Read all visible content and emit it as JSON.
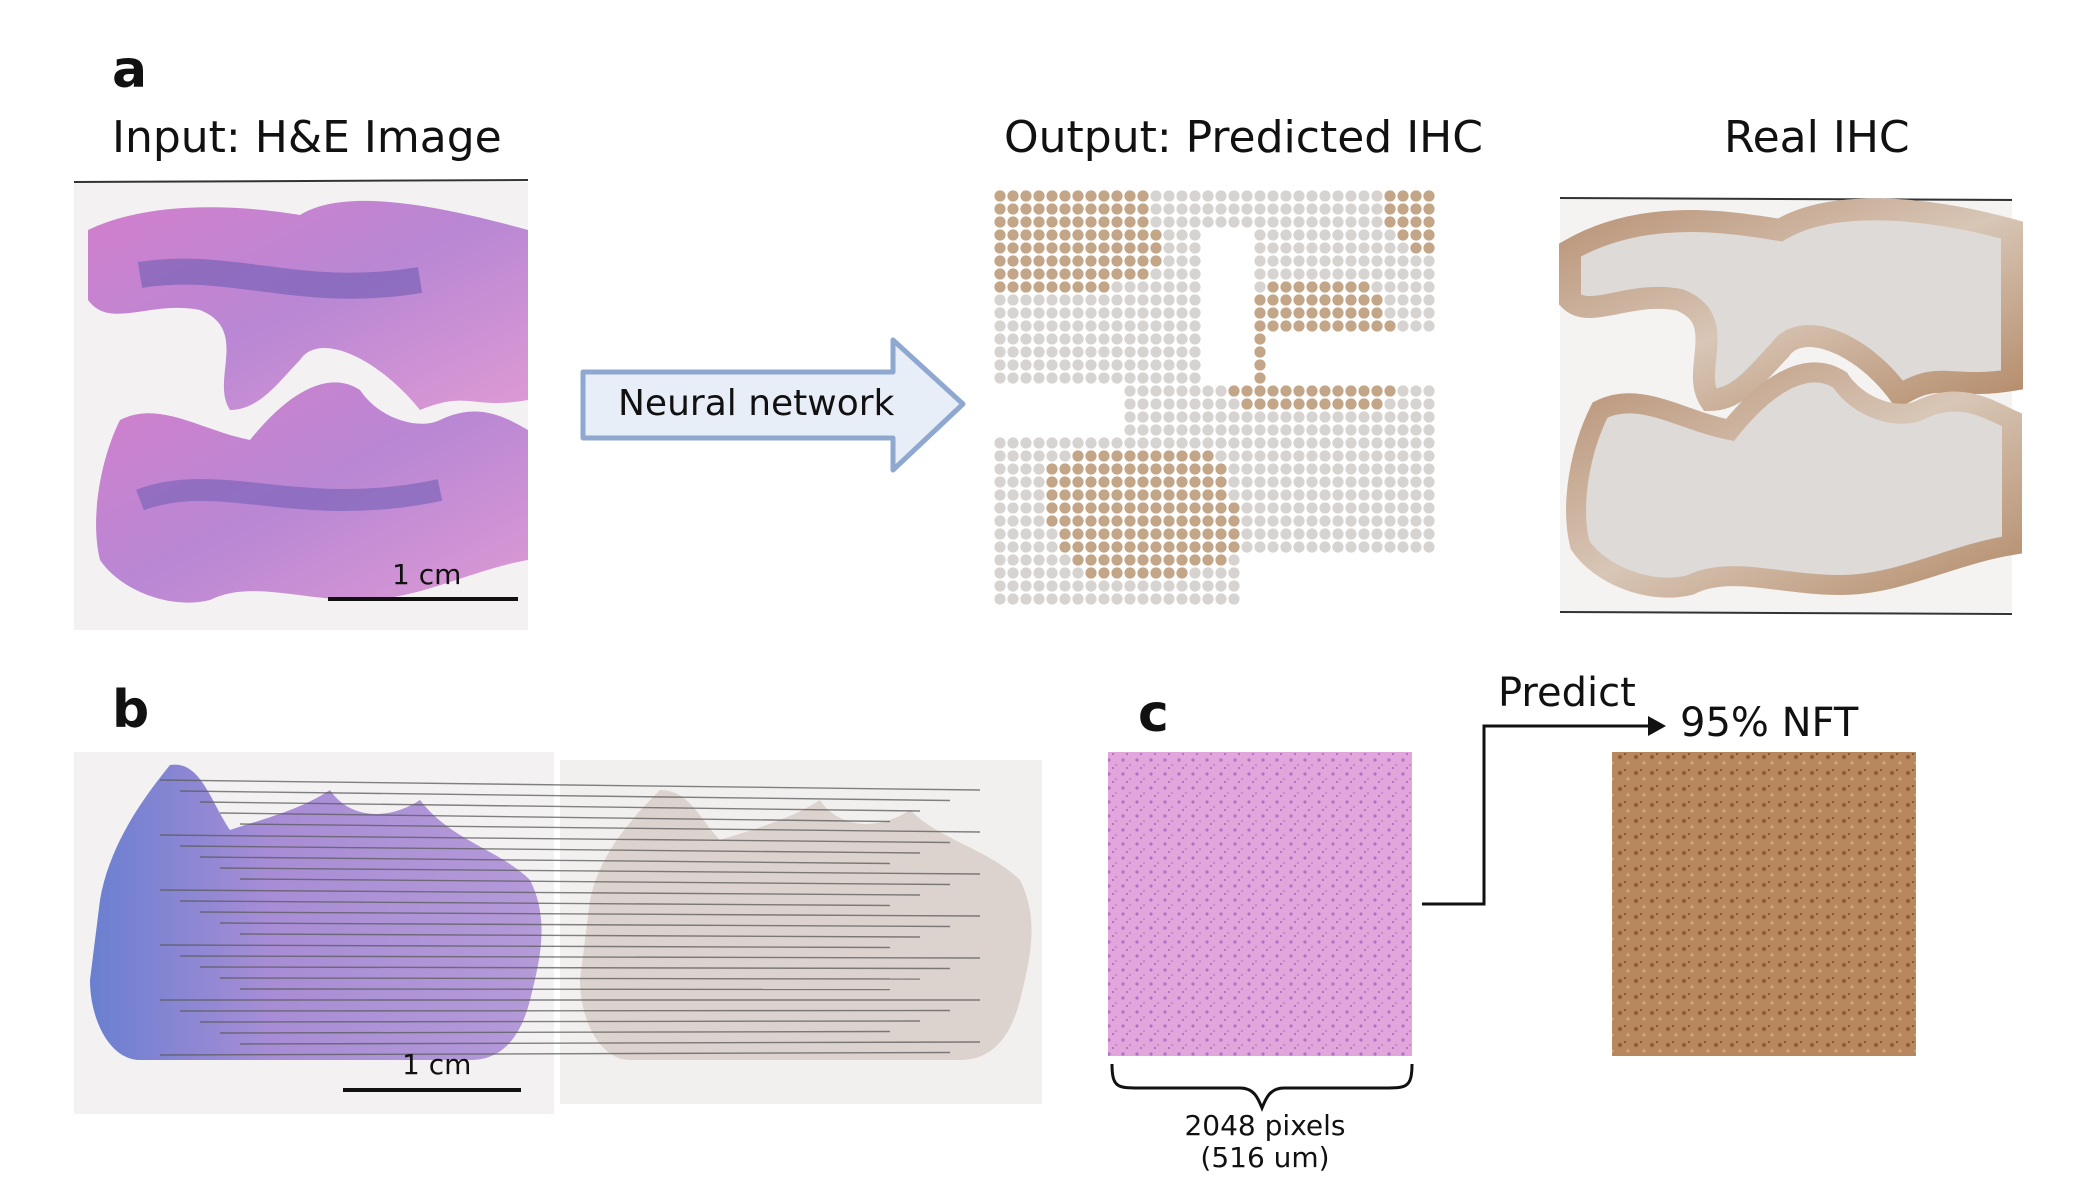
{
  "panel_a": {
    "letter": "a",
    "input_title": "Input: H&E Image",
    "network_label": "Neural network",
    "output_title": "Output: Predicted IHC",
    "real_title": "Real IHC",
    "scale_bar": "1 cm"
  },
  "panel_b": {
    "letter": "b",
    "scale_bar": "1 cm"
  },
  "panel_c": {
    "letter": "c",
    "predict_label": "Predict",
    "prediction": "95% NFT",
    "size_line1": "2048 pixels",
    "size_line2": "(516 um)"
  },
  "colors": {
    "he_pink": "#d89ad0",
    "he_purple": "#8a6cc0",
    "ihc_brown": "#c3a587",
    "ihc_grey": "#d6d3d1",
    "arrow_fill": "#e8eef8",
    "arrow_stroke": "#8fa8d0"
  }
}
